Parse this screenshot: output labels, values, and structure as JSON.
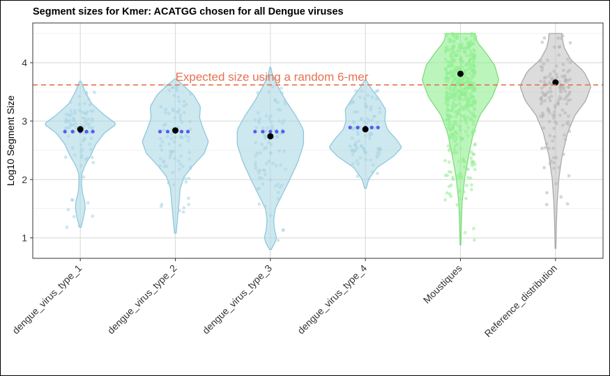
{
  "chart_data": {
    "type": "violin",
    "title": "Segment sizes for Kmer: ACATGG chosen for all Dengue viruses",
    "xlabel": "",
    "ylabel": "Log10 Segment Size",
    "ylim": [
      0.65,
      4.68
    ],
    "yticks": [
      1,
      2,
      3,
      4
    ],
    "grid": true,
    "categories": [
      "dengue_virus_type_1",
      "dengue_virus_type_2",
      "dengue_virus_type_3",
      "dengue_virus_type_4",
      "Moustiques",
      "Reference_distribution"
    ],
    "reference_line": {
      "label": "Expected size using a random 6-mer",
      "value": 3.62,
      "color": "#E8704F"
    },
    "series": [
      {
        "category": "dengue_virus_type_1",
        "color": "#ADD8E6",
        "range": [
          1.18,
          3.68
        ],
        "mean": 2.86,
        "mode_points": 2.82,
        "profile": [
          [
            1.18,
            0.02
          ],
          [
            1.35,
            0.08
          ],
          [
            1.5,
            0.12
          ],
          [
            1.62,
            0.11
          ],
          [
            1.78,
            0.05
          ],
          [
            1.95,
            0.03
          ],
          [
            2.1,
            0.04
          ],
          [
            2.25,
            0.12
          ],
          [
            2.4,
            0.25
          ],
          [
            2.6,
            0.38
          ],
          [
            2.8,
            0.6
          ],
          [
            2.95,
            0.9
          ],
          [
            3.1,
            0.6
          ],
          [
            3.3,
            0.28
          ],
          [
            3.5,
            0.12
          ],
          [
            3.68,
            0.02
          ]
        ]
      },
      {
        "category": "dengue_virus_type_2",
        "color": "#ADD8E6",
        "range": [
          1.08,
          3.72
        ],
        "mean": 2.84,
        "mode_points": 2.82,
        "profile": [
          [
            1.08,
            0.02
          ],
          [
            1.3,
            0.05
          ],
          [
            1.6,
            0.09
          ],
          [
            1.85,
            0.12
          ],
          [
            2.05,
            0.22
          ],
          [
            2.25,
            0.45
          ],
          [
            2.45,
            0.72
          ],
          [
            2.65,
            0.82
          ],
          [
            2.85,
            0.7
          ],
          [
            3.05,
            0.6
          ],
          [
            3.25,
            0.62
          ],
          [
            3.45,
            0.45
          ],
          [
            3.6,
            0.22
          ],
          [
            3.72,
            0.02
          ]
        ]
      },
      {
        "category": "dengue_virus_type_3",
        "color": "#ADD8E6",
        "range": [
          0.8,
          3.92
        ],
        "mean": 2.74,
        "mode_points": 2.82,
        "profile": [
          [
            0.8,
            0.02
          ],
          [
            0.9,
            0.1
          ],
          [
            1.0,
            0.15
          ],
          [
            1.15,
            0.1
          ],
          [
            1.3,
            0.08
          ],
          [
            1.5,
            0.12
          ],
          [
            1.75,
            0.3
          ],
          [
            2.0,
            0.48
          ],
          [
            2.3,
            0.68
          ],
          [
            2.6,
            0.82
          ],
          [
            2.85,
            0.82
          ],
          [
            3.1,
            0.62
          ],
          [
            3.35,
            0.38
          ],
          [
            3.6,
            0.18
          ],
          [
            3.8,
            0.05
          ],
          [
            3.92,
            0.01
          ]
        ]
      },
      {
        "category": "dengue_virus_type_4",
        "color": "#ADD8E6",
        "range": [
          1.85,
          3.7
        ],
        "mean": 2.86,
        "mode_points": 2.89,
        "profile": [
          [
            1.85,
            0.02
          ],
          [
            2.0,
            0.08
          ],
          [
            2.2,
            0.28
          ],
          [
            2.4,
            0.7
          ],
          [
            2.55,
            0.9
          ],
          [
            2.7,
            0.75
          ],
          [
            2.85,
            0.55
          ],
          [
            3.0,
            0.48
          ],
          [
            3.2,
            0.5
          ],
          [
            3.4,
            0.32
          ],
          [
            3.55,
            0.15
          ],
          [
            3.7,
            0.02
          ]
        ]
      },
      {
        "category": "Moustiques",
        "color": "#90EE90",
        "range": [
          0.88,
          4.5
        ],
        "mean": 3.81,
        "profile": [
          [
            0.88,
            0.01
          ],
          [
            1.2,
            0.02
          ],
          [
            1.6,
            0.04
          ],
          [
            2.0,
            0.1
          ],
          [
            2.4,
            0.2
          ],
          [
            2.8,
            0.32
          ],
          [
            3.1,
            0.48
          ],
          [
            3.4,
            0.78
          ],
          [
            3.7,
            0.95
          ],
          [
            3.95,
            0.85
          ],
          [
            4.15,
            0.65
          ],
          [
            4.35,
            0.42
          ],
          [
            4.5,
            0.35
          ]
        ]
      },
      {
        "category": "Reference_distribution",
        "color": "#C4C4C4",
        "range": [
          0.82,
          4.5
        ],
        "mean": 3.66,
        "profile": [
          [
            0.82,
            0.01
          ],
          [
            1.2,
            0.02
          ],
          [
            1.6,
            0.04
          ],
          [
            2.0,
            0.08
          ],
          [
            2.4,
            0.16
          ],
          [
            2.8,
            0.3
          ],
          [
            3.1,
            0.48
          ],
          [
            3.35,
            0.75
          ],
          [
            3.6,
            0.88
          ],
          [
            3.85,
            0.7
          ],
          [
            4.05,
            0.38
          ],
          [
            4.25,
            0.22
          ],
          [
            4.4,
            0.17
          ],
          [
            4.5,
            0.16
          ]
        ]
      }
    ]
  }
}
